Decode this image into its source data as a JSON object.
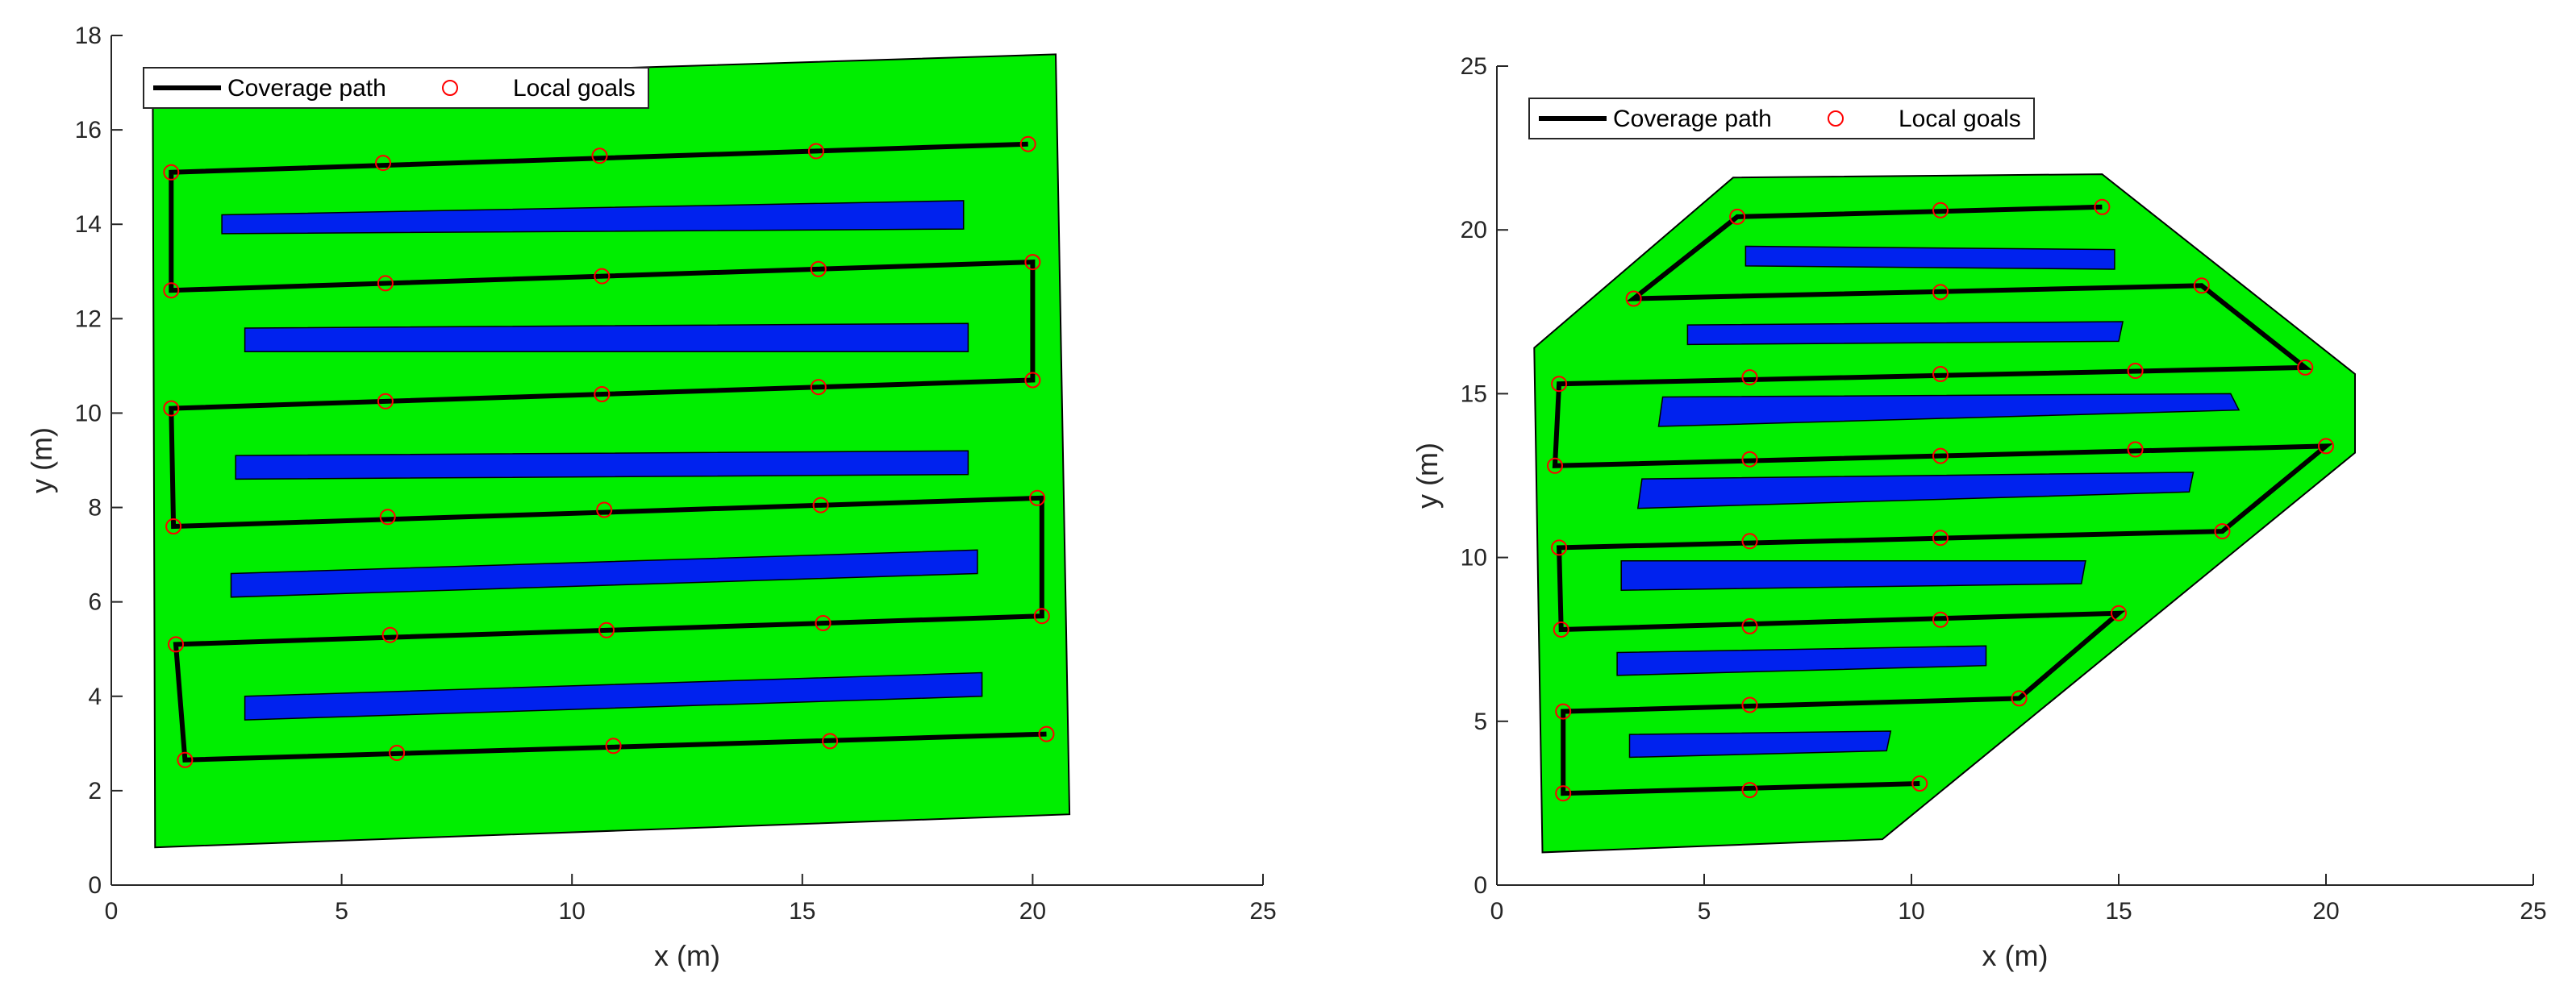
{
  "chart_data": [
    {
      "type": "line",
      "xlabel": "x (m)",
      "ylabel": "y (m)",
      "xlim": [
        0,
        25
      ],
      "ylim": [
        0,
        18
      ],
      "xticks": [
        0,
        5,
        10,
        15,
        20,
        25
      ],
      "yticks": [
        0,
        2,
        4,
        6,
        8,
        10,
        12,
        14,
        16,
        18
      ],
      "grid": false,
      "legend": {
        "placement": "top-left",
        "entries": [
          {
            "label": "Coverage path",
            "style": "line",
            "color": "#000000"
          },
          {
            "label": "Local goals",
            "style": "circle",
            "color": "#ff0000"
          }
        ]
      },
      "field": {
        "color": "#00ee00",
        "polygon": [
          [
            0.9,
            17.0
          ],
          [
            20.5,
            17.6
          ],
          [
            20.8,
            1.5
          ],
          [
            0.95,
            0.8
          ]
        ]
      },
      "obstacles": {
        "color": "#0022ee",
        "polygons": [
          [
            [
              2.4,
              14.2
            ],
            [
              18.5,
              14.5
            ],
            [
              18.5,
              13.9
            ],
            [
              2.4,
              13.8
            ]
          ],
          [
            [
              2.9,
              11.8
            ],
            [
              18.6,
              11.9
            ],
            [
              18.6,
              11.3
            ],
            [
              2.9,
              11.3
            ]
          ],
          [
            [
              2.7,
              9.1
            ],
            [
              18.6,
              9.2
            ],
            [
              18.6,
              8.7
            ],
            [
              2.7,
              8.6
            ]
          ],
          [
            [
              2.6,
              6.6
            ],
            [
              18.8,
              7.1
            ],
            [
              18.8,
              6.6
            ],
            [
              2.6,
              6.1
            ]
          ],
          [
            [
              2.9,
              4.0
            ],
            [
              18.9,
              4.5
            ],
            [
              18.9,
              4.0
            ],
            [
              2.9,
              3.5
            ]
          ]
        ]
      },
      "series": [
        {
          "label": "Coverage path",
          "x": [
            19.9,
            1.3,
            1.3,
            20.0,
            20.0,
            1.3,
            1.35,
            20.2,
            20.2,
            1.4,
            1.6,
            20.3
          ],
          "y": [
            15.7,
            15.1,
            12.6,
            13.2,
            10.7,
            10.1,
            7.6,
            8.2,
            5.7,
            5.1,
            2.65,
            3.2
          ]
        }
      ],
      "local_goals": {
        "label": "Local goals",
        "x": [
          19.9,
          15.3,
          10.6,
          5.9,
          1.3,
          1.3,
          5.95,
          10.65,
          15.35,
          20.0,
          20.0,
          15.35,
          10.65,
          5.95,
          1.3,
          1.35,
          6.0,
          10.7,
          15.4,
          20.1,
          20.2,
          15.45,
          10.75,
          6.05,
          1.4,
          1.6,
          6.2,
          10.9,
          15.6,
          20.3
        ],
        "y": [
          15.7,
          15.55,
          15.45,
          15.3,
          15.1,
          12.6,
          12.75,
          12.9,
          13.05,
          13.2,
          10.7,
          10.55,
          10.4,
          10.25,
          10.1,
          7.6,
          7.8,
          7.95,
          8.05,
          8.2,
          5.7,
          5.55,
          5.4,
          5.3,
          5.1,
          2.65,
          2.8,
          2.95,
          3.05,
          3.2
        ]
      }
    },
    {
      "type": "line",
      "xlabel": "x (m)",
      "ylabel": "y (m)",
      "xlim": [
        0,
        25
      ],
      "ylim": [
        0,
        25
      ],
      "xticks": [
        0,
        5,
        10,
        15,
        20,
        25
      ],
      "yticks": [
        0,
        5,
        10,
        15,
        20,
        25
      ],
      "grid": false,
      "legend": {
        "placement": "top-left",
        "entries": [
          {
            "label": "Coverage path",
            "style": "line",
            "color": "#000000"
          },
          {
            "label": "Local goals",
            "style": "circle",
            "color": "#ff0000"
          }
        ]
      },
      "field": {
        "color": "#00ee00",
        "polygon": [
          [
            0.9,
            16.4
          ],
          [
            5.7,
            21.6
          ],
          [
            14.6,
            21.7
          ],
          [
            20.7,
            15.6
          ],
          [
            20.7,
            13.2
          ],
          [
            9.3,
            1.4
          ],
          [
            1.1,
            1.0
          ]
        ]
      },
      "obstacles": {
        "color": "#0022ee",
        "polygons": [
          [
            [
              6.0,
              19.5
            ],
            [
              14.9,
              19.4
            ],
            [
              14.9,
              18.8
            ],
            [
              6.0,
              18.9
            ]
          ],
          [
            [
              4.6,
              17.1
            ],
            [
              15.1,
              17.2
            ],
            [
              15.0,
              16.6
            ],
            [
              4.6,
              16.5
            ]
          ],
          [
            [
              4.0,
              14.9
            ],
            [
              17.7,
              15.0
            ],
            [
              17.9,
              14.5
            ],
            [
              3.9,
              14.0
            ]
          ],
          [
            [
              3.5,
              12.4
            ],
            [
              16.8,
              12.6
            ],
            [
              16.7,
              12.0
            ],
            [
              3.4,
              11.5
            ]
          ],
          [
            [
              3.0,
              9.9
            ],
            [
              14.2,
              9.9
            ],
            [
              14.1,
              9.2
            ],
            [
              3.0,
              9.0
            ]
          ],
          [
            [
              2.9,
              7.1
            ],
            [
              11.8,
              7.3
            ],
            [
              11.8,
              6.7
            ],
            [
              2.9,
              6.4
            ]
          ],
          [
            [
              3.2,
              4.6
            ],
            [
              9.5,
              4.7
            ],
            [
              9.4,
              4.1
            ],
            [
              3.2,
              3.9
            ]
          ]
        ]
      },
      "series": [
        {
          "label": "Coverage path",
          "x": [
            14.6,
            5.8,
            3.3,
            17.0,
            19.5,
            1.5,
            1.4,
            20.0,
            17.5,
            1.5,
            1.55,
            15.0,
            12.6,
            1.6,
            1.6,
            10.2
          ],
          "y": [
            20.7,
            20.4,
            17.9,
            18.3,
            15.8,
            15.3,
            12.8,
            13.4,
            10.8,
            10.3,
            7.8,
            8.3,
            5.7,
            5.3,
            2.8,
            3.1
          ]
        }
      ],
      "local_goals": {
        "label": "Local goals",
        "x": [
          14.6,
          10.7,
          5.8,
          3.3,
          10.7,
          17.0,
          19.5,
          15.4,
          10.7,
          6.1,
          1.5,
          1.4,
          6.1,
          10.7,
          15.4,
          20.0,
          17.5,
          10.7,
          6.1,
          1.5,
          1.55,
          6.1,
          10.7,
          15.0,
          12.6,
          6.1,
          1.6,
          1.6,
          6.1,
          10.2
        ],
        "y": [
          20.7,
          20.6,
          20.4,
          17.9,
          18.1,
          18.3,
          15.8,
          15.7,
          15.6,
          15.5,
          15.3,
          12.8,
          13.0,
          13.1,
          13.3,
          13.4,
          10.8,
          10.6,
          10.5,
          10.3,
          7.8,
          7.9,
          8.1,
          8.3,
          5.7,
          5.5,
          5.3,
          2.8,
          2.9,
          3.1
        ]
      }
    }
  ]
}
